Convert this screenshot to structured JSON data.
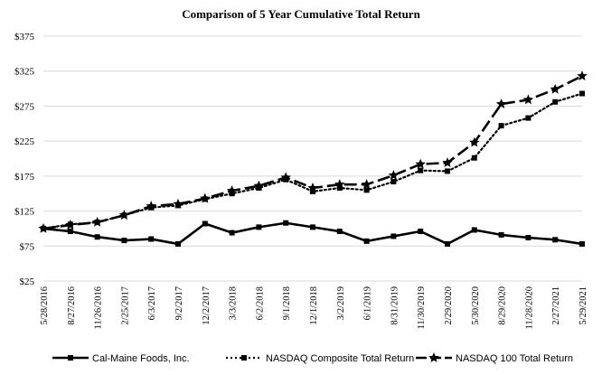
{
  "chart_data": {
    "type": "line",
    "title": "Comparison of 5 Year Cumulative Total Return",
    "xlabel": "",
    "ylabel": "",
    "ylim": [
      25,
      375
    ],
    "yticks": [
      25,
      75,
      125,
      175,
      225,
      275,
      325,
      375
    ],
    "ytick_labels": [
      "$25",
      "$75",
      "$125",
      "$175",
      "$225",
      "$275",
      "$325",
      "$375"
    ],
    "grid": true,
    "legend_position": "bottom",
    "categories": [
      "5/28/2016",
      "8/27/2016",
      "11/26/2016",
      "2/25/2017",
      "6/3/2017",
      "9/2/2017",
      "12/2/2017",
      "3/3/2018",
      "6/2/2018",
      "9/1/2018",
      "12/1/2018",
      "3/2/2019",
      "6/1/2019",
      "8/31/2019",
      "11/30/2019",
      "2/29/2020",
      "5/30/2020",
      "8/29/2020",
      "11/28/2020",
      "2/27/2021",
      "5/29/2021"
    ],
    "series": [
      {
        "name": "Cal-Maine Foods, Inc.",
        "style": "solid",
        "marker": "square",
        "color": "#000000",
        "values": [
          100,
          96,
          88,
          83,
          85,
          78,
          107,
          94,
          102,
          108,
          102,
          96,
          82,
          89,
          96,
          78,
          98,
          91,
          87,
          84,
          78
        ]
      },
      {
        "name": "NASDAQ Composite Total Return",
        "style": "dotted",
        "marker": "square",
        "color": "#000000",
        "values": [
          100,
          106,
          109,
          119,
          130,
          133,
          142,
          150,
          158,
          170,
          153,
          158,
          155,
          167,
          183,
          182,
          201,
          247,
          258,
          281,
          293
        ]
      },
      {
        "name": "NASDAQ 100 Total Return",
        "style": "dashed",
        "marker": "star",
        "color": "#000000",
        "values": [
          100,
          105,
          109,
          119,
          132,
          135,
          143,
          154,
          161,
          173,
          158,
          163,
          163,
          176,
          192,
          194,
          223,
          278,
          284,
          299,
          318
        ]
      }
    ]
  }
}
